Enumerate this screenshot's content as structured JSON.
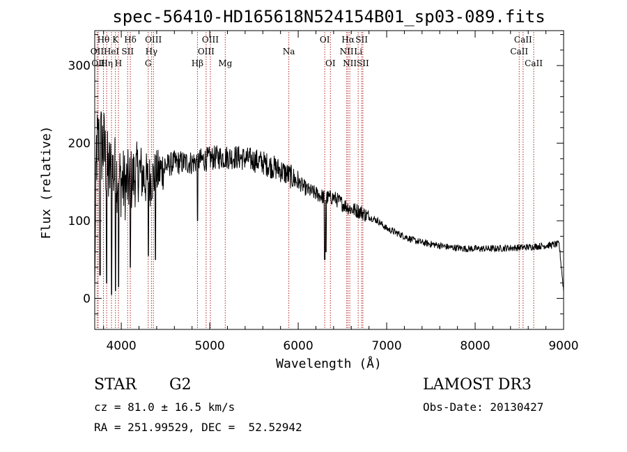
{
  "chart_data": {
    "type": "line",
    "title": "spec-56410-HD165618N524154B01_sp03-089.fits",
    "xlabel": "Wavelength (Å)",
    "ylabel": "Flux (relative)",
    "xlim": [
      3700,
      9000
    ],
    "ylim": [
      -40,
      345
    ],
    "xticks": [
      4000,
      5000,
      6000,
      7000,
      8000,
      9000
    ],
    "yticks": [
      0,
      100,
      200,
      300
    ],
    "continuum": {
      "x": [
        3700,
        3720,
        3760,
        3800,
        3850,
        3900,
        3950,
        4000,
        4050,
        4100,
        4200,
        4300,
        4400,
        4500,
        4600,
        4700,
        4800,
        4900,
        5000,
        5100,
        5200,
        5300,
        5400,
        5500,
        5600,
        5700,
        5800,
        5900,
        6000,
        6100,
        6200,
        6300,
        6400,
        6500,
        6600,
        6700,
        6800,
        6900,
        7000,
        7100,
        7200,
        7300,
        7400,
        7500,
        7600,
        7700,
        7800,
        7900,
        8000,
        8200,
        8400,
        8600,
        8800,
        8950,
        9000
      ],
      "y": [
        10,
        190,
        200,
        195,
        160,
        165,
        160,
        150,
        145,
        150,
        165,
        150,
        160,
        170,
        175,
        175,
        175,
        178,
        180,
        182,
        182,
        182,
        180,
        178,
        175,
        170,
        165,
        158,
        150,
        140,
        135,
        130,
        130,
        122,
        115,
        112,
        105,
        100,
        90,
        85,
        80,
        75,
        72,
        70,
        68,
        66,
        65,
        64,
        64,
        64,
        65,
        66,
        68,
        70,
        10
      ]
    },
    "absorption_dips": [
      {
        "x": 6300,
        "y": 50
      },
      {
        "x": 6315,
        "y": 60
      },
      {
        "x": 3760,
        "y": 30
      },
      {
        "x": 3835,
        "y": 20
      },
      {
        "x": 3890,
        "y": 5
      },
      {
        "x": 3935,
        "y": 10
      },
      {
        "x": 3970,
        "y": 15
      },
      {
        "x": 4102,
        "y": 40
      },
      {
        "x": 4305,
        "y": 55
      },
      {
        "x": 4385,
        "y": 50
      },
      {
        "x": 4862,
        "y": 100
      }
    ],
    "spectral_lines": [
      {
        "wavelength": 3727,
        "label": "OII",
        "row": 2
      },
      {
        "wavelength": 3740,
        "label": "OII",
        "row": 3
      },
      {
        "wavelength": 3798,
        "label": "Hθ",
        "row": 1
      },
      {
        "wavelength": 3835,
        "label": "Hη",
        "row": 3
      },
      {
        "wavelength": 3889,
        "label": "HeI",
        "row": 2
      },
      {
        "wavelength": 3934,
        "label": "K",
        "row": 1
      },
      {
        "wavelength": 3968,
        "label": "H",
        "row": 3
      },
      {
        "wavelength": 4072,
        "label": "SII",
        "row": 2
      },
      {
        "wavelength": 4102,
        "label": "Hδ",
        "row": 1
      },
      {
        "wavelength": 4304,
        "label": "G",
        "row": 3
      },
      {
        "wavelength": 4341,
        "label": "Hγ",
        "row": 2
      },
      {
        "wavelength": 4363,
        "label": "OIII",
        "row": 1
      },
      {
        "wavelength": 4861,
        "label": "Hβ",
        "row": 3
      },
      {
        "wavelength": 4959,
        "label": "OIII",
        "row": 2
      },
      {
        "wavelength": 5007,
        "label": "OIII",
        "row": 1
      },
      {
        "wavelength": 5175,
        "label": "Mg",
        "row": 3
      },
      {
        "wavelength": 5894,
        "label": "Na",
        "row": 2
      },
      {
        "wavelength": 6300,
        "label": "OI",
        "row": 1
      },
      {
        "wavelength": 6364,
        "label": "OI",
        "row": 3
      },
      {
        "wavelength": 6548,
        "label": "NII",
        "row": 2
      },
      {
        "wavelength": 6563,
        "label": "Hα",
        "row": 1
      },
      {
        "wavelength": 6583,
        "label": "NII",
        "row": 3
      },
      {
        "wavelength": 6678,
        "label": "Li",
        "row": 2
      },
      {
        "wavelength": 6717,
        "label": "SII",
        "row": 1
      },
      {
        "wavelength": 6731,
        "label": "SII",
        "row": 3
      },
      {
        "wavelength": 8498,
        "label": "CaII",
        "row": 2
      },
      {
        "wavelength": 8542,
        "label": "CaII",
        "row": 1
      },
      {
        "wavelength": 8662,
        "label": "CaII",
        "row": 3
      }
    ],
    "line_color": "#000000",
    "marker_color": "#b22222"
  },
  "info": {
    "object_class": "STAR",
    "subclass": "G2",
    "survey": "LAMOST DR3",
    "redshift": "cz = 81.0 ± 16.5 km/s",
    "obs_date": "Obs-Date: 20130427",
    "coords": "RA = 251.99529, DEC =  52.52942"
  }
}
